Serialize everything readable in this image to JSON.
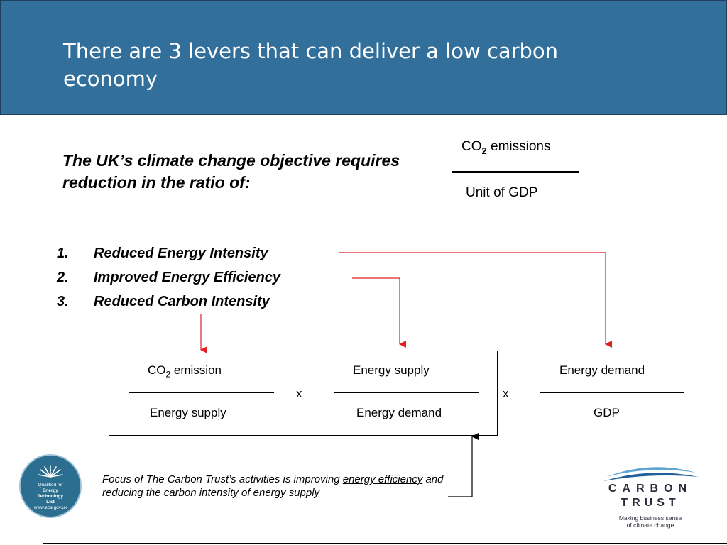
{
  "slide": {
    "title": "There are 3 levers that can deliver a low carbon economy",
    "objective": "The UK’s climate change objective requires reduction in the ratio of:"
  },
  "ratio": {
    "numerator_prefix": "CO",
    "numerator_sub": "2",
    "numerator_suffix": " emissions",
    "denominator": "Unit of GDP"
  },
  "levers": [
    {
      "number": "1.",
      "label": "Reduced Energy Intensity"
    },
    {
      "number": "2.",
      "label": "Improved Energy Efficiency"
    },
    {
      "number": "3.",
      "label": "Reduced Carbon Intensity"
    }
  ],
  "equation": {
    "fraction1": {
      "num_prefix": "CO",
      "num_sub": "2",
      "num_suffix": " emission",
      "den": "Energy supply"
    },
    "fraction2": {
      "num": "Energy supply",
      "den": "Energy demand"
    },
    "fraction3": {
      "num": "Energy demand",
      "den": "GDP"
    },
    "times1": "x",
    "times2": "x"
  },
  "focus": {
    "part1": "Focus of The Carbon Trust’s activities is improving ",
    "link1": "energy efficiency",
    "part2": " and reducing the ",
    "link2": "carbon intensity",
    "part3": " of energy supply"
  },
  "badge": {
    "line1": "Qualified for",
    "line2": "Energy",
    "line3": "Technology",
    "line4": "List",
    "line5": "www.eca.gov.uk"
  },
  "logo": {
    "word1": "CARBON",
    "word2": "TRUST",
    "tagline1": "Making business sense",
    "tagline2": "of climate change"
  },
  "colors": {
    "header_bg": "#336f9b",
    "arrow_red": "#e02020",
    "arrow_black": "#000000"
  }
}
